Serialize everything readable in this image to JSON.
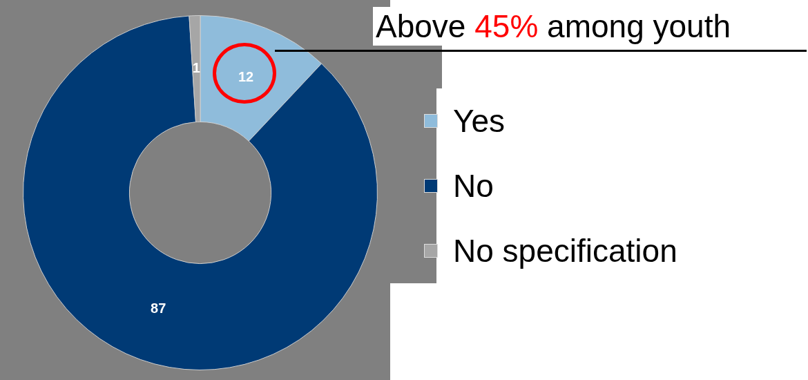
{
  "chart_data": {
    "type": "donut",
    "categories": [
      "Yes",
      "No",
      "No specification"
    ],
    "values": [
      12,
      87,
      1
    ],
    "colors": [
      "#8fbcdb",
      "#003a75",
      "#a6a6a6"
    ],
    "data_labels": true,
    "legend": "right",
    "annotations": [
      "Above 45% among youth"
    ]
  }
}
